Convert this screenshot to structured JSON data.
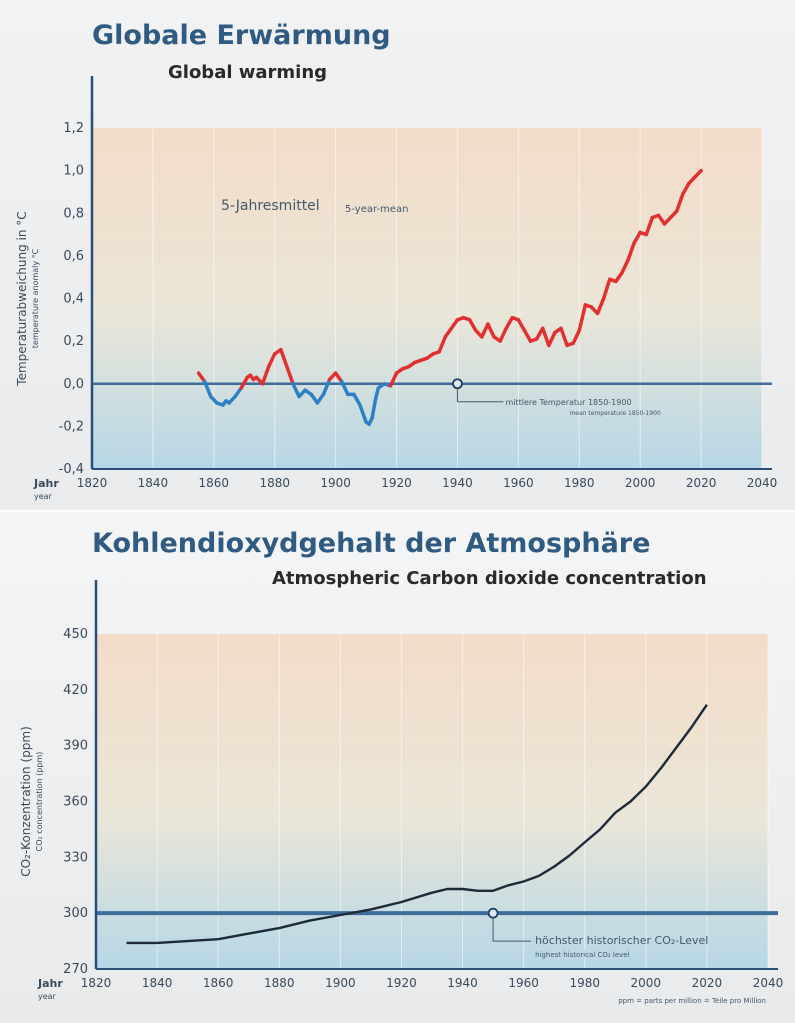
{
  "panel_temperature": {
    "title": "Globale Erwärmung",
    "subtitle": "Global warming"
  },
  "panel_co2": {
    "title": "Kohlendioxydgehalt der Atmosphäre",
    "subtitle": "Atmospheric Carbon dioxide concentration"
  },
  "colors": {
    "axis": "#2a4e7a",
    "above_mean": "#e03030",
    "below_mean": "#2f7fc4",
    "co2_line": "#1e2a38",
    "reference_line": "#3f6d9a",
    "bg_warm": "#f3dcc8",
    "bg_cool": "#b6d7e6"
  },
  "chart_data": [
    {
      "type": "line",
      "title": "Globale Erwärmung",
      "subtitle": "Global warming",
      "xlabel": "Jahr",
      "xlabel_sub": "year",
      "ylabel": "Temperaturabweichung in °C",
      "ylabel_sub": "temperature anomaly °C",
      "xlim": [
        1820,
        2040
      ],
      "ylim": [
        -0.4,
        1.2
      ],
      "x_ticks": [
        1820,
        1840,
        1860,
        1880,
        1900,
        1920,
        1940,
        1960,
        1980,
        2000,
        2020,
        2040
      ],
      "y_ticks": [
        -0.4,
        -0.2,
        0.0,
        0.2,
        0.4,
        0.6,
        0.8,
        1.0,
        1.2
      ],
      "y_tick_labels": [
        "-0,4",
        "-0,2",
        "0,0",
        "0,2",
        "0,4",
        "0,6",
        "0,8",
        "1,0",
        "1,2"
      ],
      "grid": true,
      "annotation": "5-Jahresmittel",
      "annotation_sub": "5-year-mean",
      "reference": {
        "y": 0.0,
        "label": "mittlere Temperatur 1850-1900",
        "label_sub": "mean temperature 1850-1900",
        "marker_x": 1940
      },
      "series": [
        {
          "x": [
            1855,
            1857,
            1859,
            1861,
            1863,
            1864,
            1865,
            1867,
            1869,
            1871,
            1872,
            1873,
            1874,
            1876,
            1878,
            1880,
            1882,
            1884,
            1886,
            1888,
            1890,
            1892,
            1894,
            1896,
            1898,
            1900,
            1902,
            1904,
            1906,
            1908,
            1910,
            1911,
            1912,
            1913,
            1914,
            1916,
            1918,
            1920,
            1922,
            1924,
            1926,
            1928,
            1930,
            1932,
            1934,
            1936,
            1938,
            1940,
            1942,
            1944,
            1946,
            1948,
            1950,
            1952,
            1954,
            1956,
            1958,
            1960,
            1962,
            1964,
            1966,
            1968,
            1970,
            1972,
            1974,
            1976,
            1978,
            1980,
            1982,
            1984,
            1986,
            1988,
            1990,
            1992,
            1994,
            1996,
            1998,
            2000,
            2002,
            2004,
            2006,
            2008,
            2010,
            2012,
            2014,
            2016,
            2018,
            2020
          ],
          "y": [
            0.05,
            0.01,
            -0.06,
            -0.09,
            -0.1,
            -0.08,
            -0.09,
            -0.06,
            -0.02,
            0.03,
            0.04,
            0.02,
            0.03,
            0.0,
            0.08,
            0.14,
            0.16,
            0.08,
            0.0,
            -0.06,
            -0.03,
            -0.05,
            -0.09,
            -0.05,
            0.02,
            0.05,
            0.01,
            -0.05,
            -0.05,
            -0.1,
            -0.18,
            -0.19,
            -0.16,
            -0.08,
            -0.02,
            0.0,
            -0.01,
            0.05,
            0.07,
            0.08,
            0.1,
            0.11,
            0.12,
            0.14,
            0.15,
            0.22,
            0.26,
            0.3,
            0.31,
            0.3,
            0.25,
            0.22,
            0.28,
            0.22,
            0.2,
            0.26,
            0.31,
            0.3,
            0.25,
            0.2,
            0.21,
            0.26,
            0.18,
            0.24,
            0.26,
            0.18,
            0.19,
            0.25,
            0.37,
            0.36,
            0.33,
            0.4,
            0.49,
            0.48,
            0.52,
            0.58,
            0.66,
            0.71,
            0.7,
            0.78,
            0.79,
            0.75,
            0.78,
            0.81,
            0.89,
            0.94,
            0.97,
            1.0
          ]
        }
      ]
    },
    {
      "type": "line",
      "title": "Kohlendioxydgehalt der Atmosphäre",
      "subtitle": "Atmospheric Carbon dioxide concentration",
      "xlabel": "Jahr",
      "xlabel_sub": "year",
      "ylabel": "CO₂-Konzentration (ppm)",
      "ylabel_sub": "CO₂ concentration (ppm)",
      "xlim": [
        1820,
        2040
      ],
      "ylim": [
        270,
        450
      ],
      "x_ticks": [
        1820,
        1840,
        1860,
        1880,
        1900,
        1920,
        1940,
        1960,
        1980,
        2000,
        2020,
        2040
      ],
      "y_ticks": [
        270,
        300,
        330,
        360,
        390,
        420,
        450
      ],
      "grid": true,
      "reference": {
        "y": 300,
        "label": "höchster historischer CO₂-Level",
        "label_sub": "highest historical CO₂ level",
        "marker_x": 1950
      },
      "footnote": "ppm = parts per million = Teile pro Million",
      "series": [
        {
          "x": [
            1830,
            1840,
            1850,
            1860,
            1870,
            1880,
            1890,
            1900,
            1910,
            1920,
            1930,
            1935,
            1940,
            1945,
            1950,
            1955,
            1960,
            1965,
            1970,
            1975,
            1980,
            1985,
            1990,
            1995,
            2000,
            2005,
            2010,
            2015,
            2020
          ],
          "y": [
            284,
            284,
            285,
            286,
            289,
            292,
            296,
            299,
            302,
            306,
            311,
            313,
            313,
            312,
            312,
            315,
            317,
            320,
            325,
            331,
            338,
            345,
            354,
            360,
            368,
            378,
            389,
            400,
            412
          ]
        }
      ]
    }
  ]
}
